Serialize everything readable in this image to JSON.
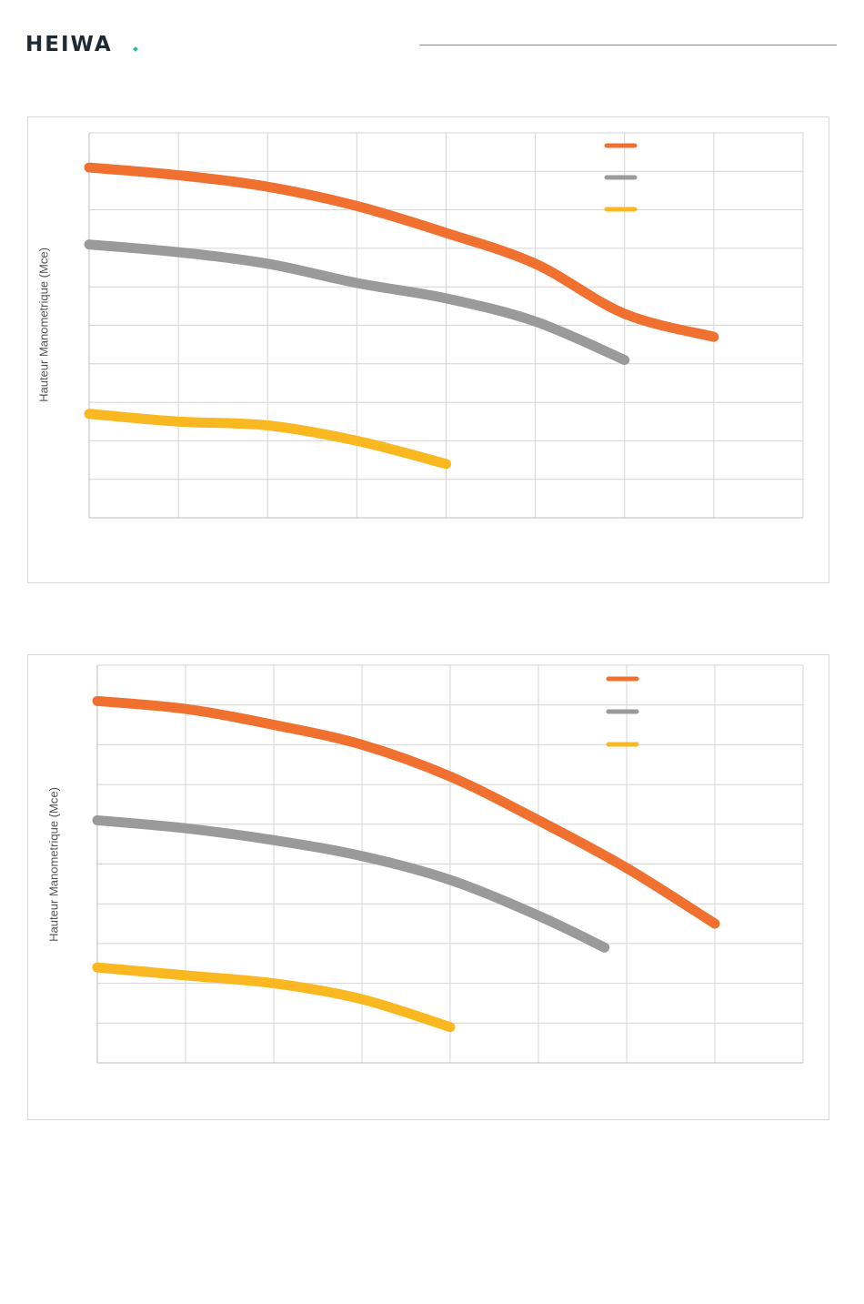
{
  "brand": {
    "name": "HEIWA"
  },
  "colors": {
    "accent": "#2bb8a0",
    "series1": "#f07030",
    "series2": "#9a9a9a",
    "series3": "#f9b820",
    "grid": "#d4d4d4"
  },
  "chart_data": [
    {
      "type": "line",
      "ylabel": "Hauteur Manometrique (Mce)",
      "xlabel": "",
      "grid": true,
      "legend": "top-right",
      "xlim": [
        0,
        8
      ],
      "ylim": [
        0,
        10
      ],
      "series": [
        {
          "color": "#f07030",
          "x": [
            0,
            1,
            2,
            3,
            4,
            5,
            6,
            7
          ],
          "y": [
            9.1,
            8.9,
            8.6,
            8.1,
            7.4,
            6.6,
            5.3,
            4.7
          ]
        },
        {
          "color": "#9a9a9a",
          "x": [
            0,
            1,
            2,
            3,
            4,
            5,
            6
          ],
          "y": [
            7.1,
            6.9,
            6.6,
            6.1,
            5.7,
            5.1,
            4.1
          ]
        },
        {
          "color": "#f9b820",
          "x": [
            0,
            1,
            2,
            3,
            4
          ],
          "y": [
            2.7,
            2.5,
            2.4,
            2.0,
            1.4
          ]
        }
      ]
    },
    {
      "type": "line",
      "ylabel": "Hauteur Manometrique (Mce)",
      "xlabel": "",
      "grid": true,
      "legend": "top-right",
      "xlim": [
        0,
        8
      ],
      "ylim": [
        0,
        10
      ],
      "series": [
        {
          "color": "#f07030",
          "x": [
            0,
            1,
            2,
            3,
            4,
            5,
            6,
            7
          ],
          "y": [
            9.1,
            8.9,
            8.5,
            8.0,
            7.2,
            6.1,
            4.9,
            3.5
          ]
        },
        {
          "color": "#9a9a9a",
          "x": [
            0,
            1,
            2,
            3,
            4,
            5,
            5.75
          ],
          "y": [
            6.1,
            5.9,
            5.6,
            5.2,
            4.6,
            3.7,
            2.9
          ]
        },
        {
          "color": "#f9b820",
          "x": [
            0,
            1,
            2,
            3,
            4
          ],
          "y": [
            2.4,
            2.2,
            2.0,
            1.6,
            0.9
          ]
        }
      ]
    }
  ]
}
